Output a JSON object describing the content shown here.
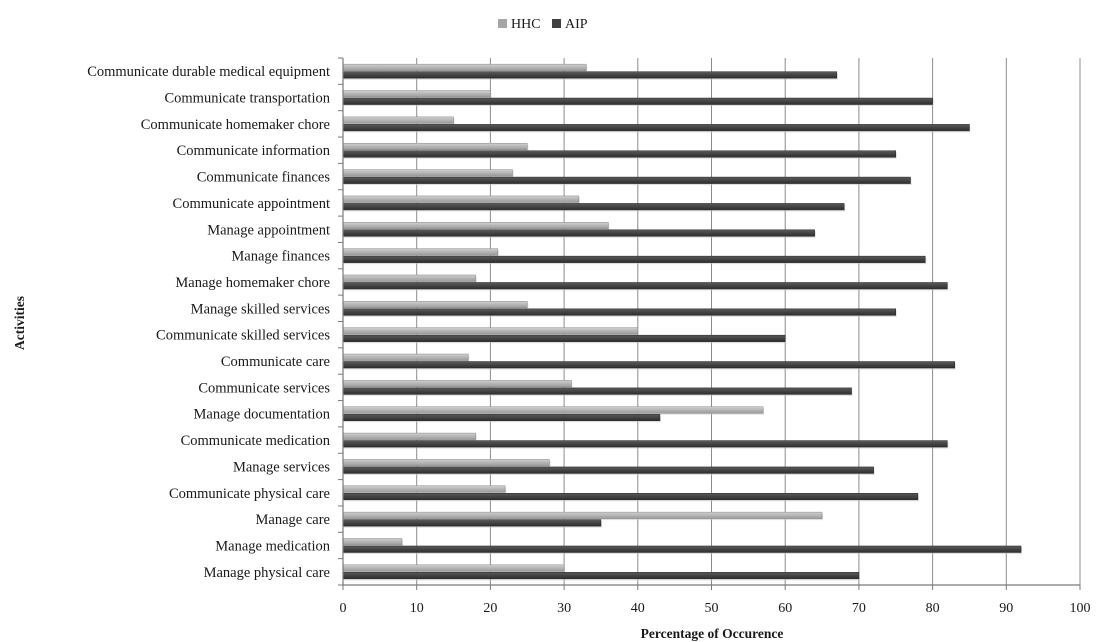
{
  "chart_data": {
    "type": "bar",
    "orientation": "horizontal",
    "title": "",
    "xlabel": "Percentage of Occurence",
    "ylabel": "Activities",
    "xlim": [
      0,
      100
    ],
    "xticks": [
      0,
      10,
      20,
      30,
      40,
      50,
      60,
      70,
      80,
      90,
      100
    ],
    "grid": "vertical lines",
    "legend_position": "top-center",
    "categories": [
      "Communicate durable medical equipment",
      "Communicate transportation",
      "Communicate homemaker chore",
      "Communicate information",
      "Communicate finances",
      "Communicate appointment",
      "Manage appointment",
      "Manage finances",
      "Manage homemaker chore",
      "Manage skilled services",
      "Communicate skilled services",
      "Communicate care",
      "Communicate services",
      "Manage documentation",
      "Communicate medication",
      "Manage services",
      "Communicate physical care",
      "Manage care",
      "Manage medication",
      "Manage physical care"
    ],
    "series": [
      {
        "name": "HHC",
        "color": "#a6a6a6",
        "values": [
          33,
          20,
          15,
          25,
          23,
          32,
          36,
          21,
          18,
          25,
          40,
          17,
          31,
          57,
          18,
          28,
          22,
          65,
          8,
          30
        ]
      },
      {
        "name": "AIP",
        "color": "#404040",
        "values": [
          67,
          80,
          85,
          75,
          77,
          68,
          64,
          79,
          82,
          75,
          60,
          83,
          69,
          43,
          82,
          72,
          78,
          35,
          92,
          70
        ]
      }
    ]
  }
}
